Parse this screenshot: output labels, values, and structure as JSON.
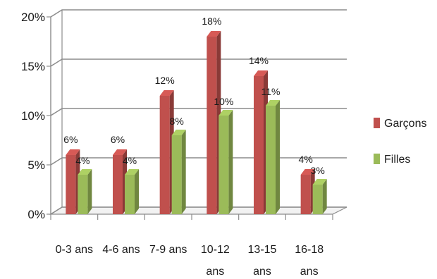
{
  "chart_data": {
    "type": "bar",
    "title": "",
    "xlabel": "",
    "ylabel": "",
    "categories": [
      [
        "0-3 ans"
      ],
      [
        "4-6 ans"
      ],
      [
        "7-9 ans"
      ],
      [
        "10-12",
        "ans"
      ],
      [
        "13-15",
        "ans"
      ],
      [
        "16-18",
        "ans"
      ]
    ],
    "series": [
      {
        "name": "Garçons",
        "color": "#c0504d",
        "values": [
          6,
          6,
          12,
          18,
          14,
          4
        ]
      },
      {
        "name": "Filles",
        "color": "#9bbb59",
        "values": [
          4,
          4,
          8,
          10,
          11,
          3
        ]
      }
    ],
    "value_labels": [
      [
        "6%",
        "6%",
        "12%",
        "18%",
        "14%",
        "4%"
      ],
      [
        "4%",
        "4%",
        "8%",
        "10%",
        "11%",
        "3%"
      ]
    ],
    "ylim": [
      0,
      20
    ],
    "yticks": [
      0,
      5,
      10,
      15,
      20
    ],
    "ytick_labels": [
      "0%",
      "5%",
      "10%",
      "15%",
      "20%"
    ],
    "grid": true,
    "legend_position": "right",
    "style": "3d-column"
  }
}
